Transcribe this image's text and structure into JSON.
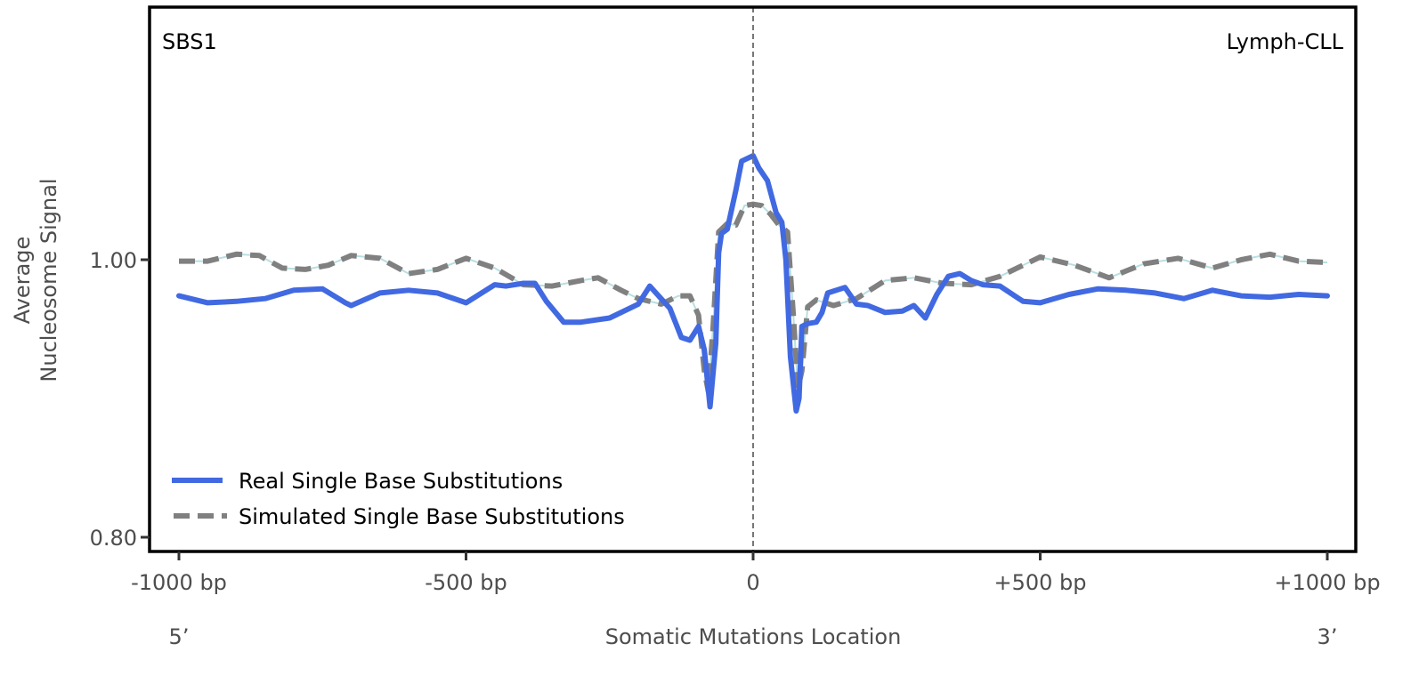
{
  "chart_data": {
    "type": "line",
    "title_left": "SBS1",
    "title_right": "Lymph-CLL",
    "xlabel": "Somatic Mutations Location",
    "ylabel": [
      "Average",
      "Nucleosome Signal"
    ],
    "x_end_labels": [
      "5’",
      "3’"
    ],
    "xlim": [
      -1050,
      1050
    ],
    "ylim": [
      0.79,
      1.182
    ],
    "xticks": [
      -1000,
      -500,
      0,
      500,
      1000
    ],
    "xtick_labels": [
      "-1000 bp",
      "-500 bp",
      "0",
      "+500 bp",
      "+1000 bp"
    ],
    "yticks": [
      0.8,
      1.0
    ],
    "ytick_labels": [
      "0.80",
      "1.00"
    ],
    "vline_x": 0,
    "legend_position": "lower-left",
    "series": [
      {
        "name": "Real Single Base Substitutions",
        "color": "#4169e1",
        "style": "solid",
        "x": [
          -1000,
          -950,
          -900,
          -850,
          -800,
          -750,
          -710,
          -700,
          -650,
          -600,
          -550,
          -500,
          -450,
          -430,
          -400,
          -380,
          -360,
          -330,
          -300,
          -250,
          -200,
          -180,
          -145,
          -125,
          -110,
          -95,
          -85,
          -75,
          -65,
          -60,
          -55,
          -45,
          -30,
          -20,
          -5,
          0,
          10,
          25,
          40,
          50,
          57,
          65,
          75,
          80,
          85,
          95,
          110,
          120,
          130,
          160,
          180,
          200,
          230,
          260,
          280,
          300,
          320,
          340,
          360,
          380,
          400,
          430,
          470,
          500,
          550,
          600,
          650,
          700,
          750,
          800,
          850,
          900,
          950,
          1000
        ],
        "y": [
          0.974,
          0.969,
          0.97,
          0.972,
          0.978,
          0.979,
          0.969,
          0.967,
          0.976,
          0.978,
          0.976,
          0.969,
          0.982,
          0.981,
          0.983,
          0.983,
          0.97,
          0.955,
          0.955,
          0.958,
          0.968,
          0.981,
          0.965,
          0.944,
          0.942,
          0.952,
          0.935,
          0.894,
          0.94,
          1.005,
          1.019,
          1.022,
          1.05,
          1.071,
          1.074,
          1.075,
          1.066,
          1.057,
          1.034,
          1.027,
          1.0,
          0.93,
          0.891,
          0.9,
          0.952,
          0.954,
          0.955,
          0.962,
          0.976,
          0.98,
          0.968,
          0.967,
          0.962,
          0.963,
          0.967,
          0.958,
          0.975,
          0.988,
          0.99,
          0.985,
          0.982,
          0.981,
          0.97,
          0.969,
          0.975,
          0.979,
          0.978,
          0.976,
          0.972,
          0.978,
          0.974,
          0.973,
          0.975,
          0.974
        ]
      },
      {
        "name": "Simulated Single Base Substitutions",
        "color": "#808080",
        "style": "dashed",
        "x": [
          -1000,
          -950,
          -900,
          -860,
          -820,
          -780,
          -740,
          -700,
          -650,
          -600,
          -550,
          -500,
          -450,
          -400,
          -350,
          -300,
          -270,
          -230,
          -200,
          -160,
          -130,
          -110,
          -95,
          -85,
          -78,
          -70,
          -60,
          -45,
          -30,
          -15,
          0,
          15,
          30,
          45,
          60,
          70,
          78,
          85,
          95,
          110,
          140,
          180,
          230,
          280,
          330,
          380,
          430,
          500,
          560,
          620,
          680,
          740,
          800,
          850,
          900,
          950,
          1000
        ],
        "y": [
          0.999,
          0.999,
          1.004,
          1.003,
          0.994,
          0.993,
          0.996,
          1.003,
          1.001,
          0.99,
          0.993,
          1.001,
          0.994,
          0.982,
          0.981,
          0.985,
          0.987,
          0.978,
          0.972,
          0.968,
          0.974,
          0.974,
          0.96,
          0.92,
          0.905,
          0.95,
          1.02,
          1.026,
          1.025,
          1.039,
          1.04,
          1.039,
          1.033,
          1.025,
          1.02,
          0.96,
          0.907,
          0.92,
          0.966,
          0.971,
          0.967,
          0.972,
          0.985,
          0.987,
          0.983,
          0.982,
          0.988,
          1.002,
          0.996,
          0.987,
          0.997,
          1.001,
          0.994,
          1.0,
          1.004,
          0.999,
          0.998
        ]
      }
    ]
  }
}
